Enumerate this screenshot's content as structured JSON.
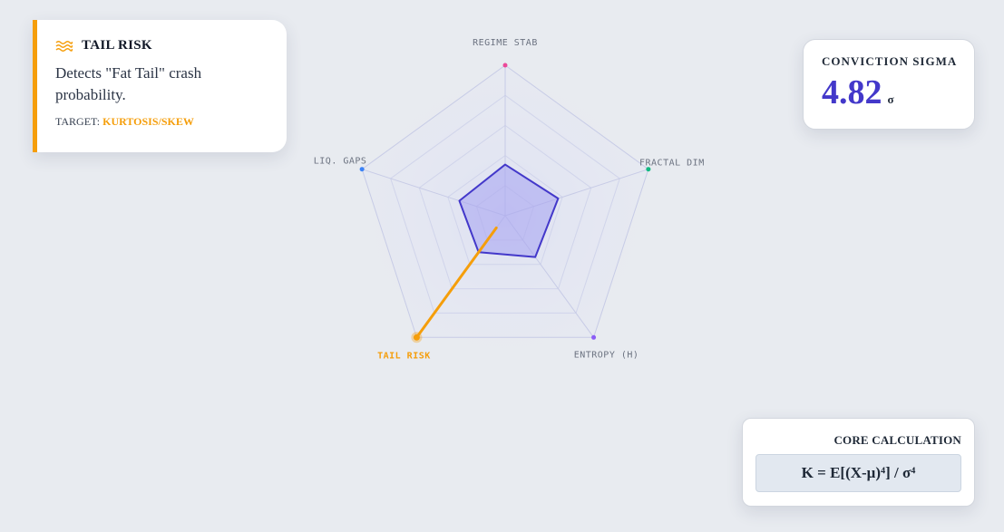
{
  "info_card": {
    "icon": "waves-icon",
    "title": "TAIL RISK",
    "description": "Detects \"Fat Tail\" crash probability.",
    "target_label": "TARGET:",
    "target_value": "KURTOSIS/SKEW"
  },
  "sigma_card": {
    "label": "CONVICTION SIGMA",
    "value": "4.82",
    "unit": "σ"
  },
  "calc_card": {
    "label": "CORE CALCULATION",
    "formula": "K = E[(X-μ)⁴] / σ⁴"
  },
  "chart_data": {
    "type": "radar",
    "axes": [
      {
        "label": "REGIME STAB",
        "color": "#ec4899",
        "value": 0.34
      },
      {
        "label": "FRACTAL DIM",
        "color": "#10b981",
        "value": 0.37
      },
      {
        "label": "ENTROPY (H)",
        "color": "#8b5cf6",
        "value": 0.34
      },
      {
        "label": "TAIL RISK",
        "color": "#f59e0b",
        "value": 0.3
      },
      {
        "label": "LIQ. GAPS",
        "color": "#3b82f6",
        "value": 0.32
      }
    ],
    "selected_axis": "TAIL RISK",
    "range": [
      0,
      1
    ],
    "rings": 5,
    "colors": {
      "polygon_fill": "#a5a3f0",
      "polygon_stroke": "#4338ca",
      "grid": "#c7cbe6",
      "highlight": "#f59e0b"
    }
  }
}
